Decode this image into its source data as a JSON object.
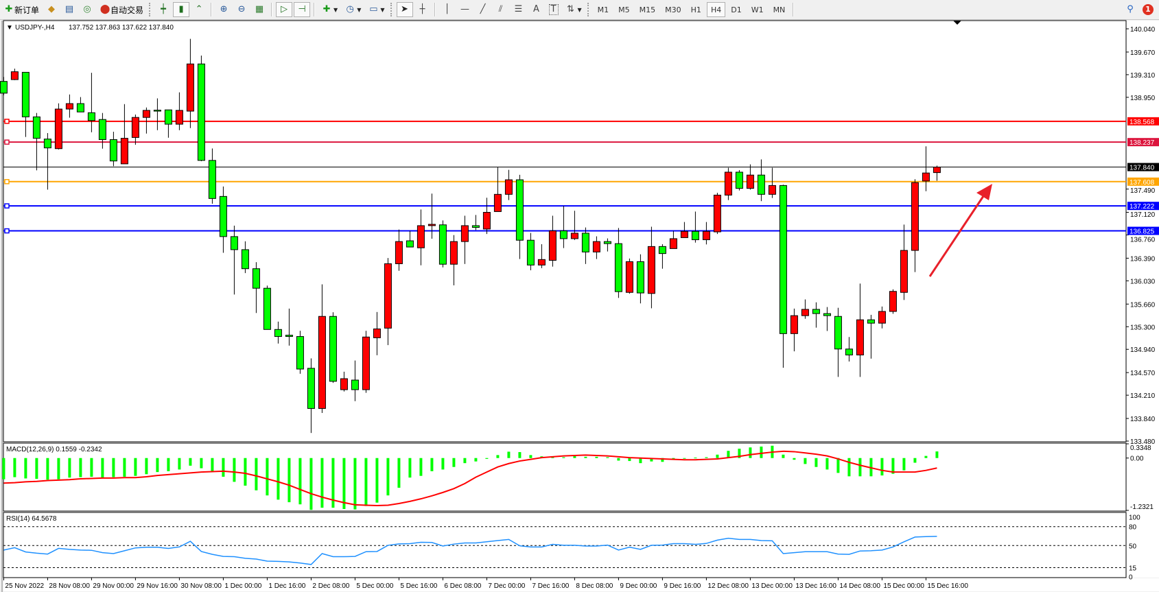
{
  "toolbar": {
    "new_order_label": "新订单",
    "auto_trading_label": "自动交易",
    "icons": [
      "new-order-icon",
      "market-watch-icon",
      "data-window-icon",
      "navigator-icon",
      "auto-trading-icon",
      "bar-chart-icon",
      "candlestick-icon",
      "line-chart-icon",
      "zoom-in-icon",
      "zoom-out-icon",
      "tile-windows-icon",
      "auto-scroll-icon",
      "chart-shift-icon",
      "indicators-icon",
      "periods-icon",
      "templates-icon",
      "cursor-icon",
      "crosshair-icon",
      "vertical-line-icon",
      "horizontal-line-icon",
      "trendline-icon",
      "equidistant-channel-icon",
      "fibonacci-icon",
      "text-icon",
      "text-label-icon",
      "arrows-icon",
      "search-icon",
      "notification-icon"
    ],
    "text_tool_label": "A",
    "timeframes": [
      "M1",
      "M5",
      "M15",
      "M30",
      "H1",
      "H4",
      "D1",
      "W1",
      "MN"
    ],
    "active_timeframe": "H4",
    "notification_count": "1"
  },
  "chart_header": {
    "symbol": "USDJPY-,H4",
    "ohlc": "137.752 137.863 137.622 137.840"
  },
  "colors": {
    "bull": "#ff0000",
    "bear": "#00ff00",
    "macd_hist": "#00ff00",
    "macd_signal": "#ff0000",
    "rsi": "#1e90ff"
  },
  "price_axis": {
    "ticks": [
      "140.040",
      "139.670",
      "139.310",
      "138.950",
      "137.490",
      "137.120",
      "136.760",
      "136.390",
      "136.030",
      "135.660",
      "135.300",
      "134.940",
      "134.570",
      "134.210",
      "133.840",
      "133.480"
    ],
    "range": [
      133.48,
      140.04
    ]
  },
  "levels": [
    {
      "price": "138.568",
      "color": "#ff0000"
    },
    {
      "price": "138.237",
      "color": "#dc143c"
    },
    {
      "price": "137.840",
      "color": "#000000"
    },
    {
      "price": "137.608",
      "color": "#ffa500"
    },
    {
      "price": "137.222",
      "color": "#0000ff"
    },
    {
      "price": "136.825",
      "color": "#0000ff"
    }
  ],
  "time_axis": [
    "25 Nov 2022",
    "28 Nov 08:00",
    "29 Nov 00:00",
    "29 Nov 16:00",
    "30 Nov 08:00",
    "1 Dec 00:00",
    "1 Dec 16:00",
    "2 Dec 08:00",
    "5 Dec 00:00",
    "5 Dec 16:00",
    "6 Dec 08:00",
    "7 Dec 00:00",
    "7 Dec 16:00",
    "8 Dec 08:00",
    "9 Dec 00:00",
    "9 Dec 16:00",
    "12 Dec 08:00",
    "13 Dec 00:00",
    "13 Dec 16:00",
    "14 Dec 08:00",
    "15 Dec 00:00",
    "15 Dec 16:00"
  ],
  "macd": {
    "label": "MACD(12,26,9) 0.1559 -0.2342",
    "axis": [
      "0.3348",
      "0.00",
      "-1.2321"
    ],
    "range": [
      -1.2321,
      0.3348
    ]
  },
  "rsi": {
    "label": "RSI(14) 64.5678",
    "axis": [
      "100",
      "80",
      "50",
      "15",
      "0"
    ],
    "levels": [
      80,
      50,
      15
    ]
  },
  "chart_data": {
    "type": "candlestick",
    "ohlc_order": [
      "open",
      "high",
      "low",
      "close"
    ],
    "candles": [
      [
        139.203,
        139.274,
        138.983,
        139.016
      ],
      [
        139.232,
        139.406,
        139.224,
        139.357
      ],
      [
        139.348,
        139.348,
        138.319,
        138.639
      ],
      [
        138.639,
        138.701,
        137.788,
        138.298
      ],
      [
        138.286,
        138.381,
        137.481,
        138.145
      ],
      [
        138.133,
        138.854,
        138.12,
        138.763
      ],
      [
        138.763,
        138.995,
        138.626,
        138.85
      ],
      [
        138.85,
        138.954,
        138.717,
        138.717
      ],
      [
        138.705,
        139.34,
        138.394,
        138.58
      ],
      [
        138.597,
        138.701,
        138.133,
        138.277
      ],
      [
        138.277,
        138.402,
        137.854,
        137.937
      ],
      [
        137.891,
        138.842,
        137.891,
        138.298
      ],
      [
        138.311,
        138.676,
        138.195,
        138.63
      ],
      [
        138.63,
        138.788,
        138.373,
        138.742
      ],
      [
        138.746,
        138.933,
        138.427,
        138.74
      ],
      [
        138.75,
        138.75,
        138.307,
        138.522
      ],
      [
        138.522,
        139.029,
        138.427,
        138.742
      ],
      [
        138.73,
        139.88,
        138.46,
        139.481
      ],
      [
        139.481,
        139.614,
        137.933,
        137.946
      ],
      [
        137.946,
        138.136,
        137.257,
        137.34
      ],
      [
        137.373,
        137.531,
        136.476,
        136.734
      ],
      [
        136.734,
        136.908,
        135.812,
        136.526
      ],
      [
        136.526,
        136.659,
        136.153,
        136.223
      ],
      [
        136.223,
        136.327,
        135.518,
        135.912
      ],
      [
        135.912,
        135.954,
        135.256,
        135.256
      ],
      [
        135.256,
        135.381,
        135.032,
        135.144
      ],
      [
        135.165,
        135.588,
        134.999,
        135.144
      ],
      [
        135.144,
        135.235,
        134.551,
        134.626
      ],
      [
        134.638,
        134.796,
        133.609,
        133.999
      ],
      [
        133.999,
        135.974,
        133.928,
        135.464
      ],
      [
        135.464,
        135.53,
        134.406,
        134.431
      ],
      [
        134.298,
        134.584,
        134.269,
        134.473
      ],
      [
        134.451,
        134.762,
        134.115,
        134.298
      ],
      [
        134.298,
        135.235,
        134.248,
        135.136
      ],
      [
        135.124,
        135.534,
        134.846,
        135.265
      ],
      [
        135.277,
        136.393,
        135.007,
        136.302
      ],
      [
        136.302,
        136.846,
        136.19,
        136.655
      ],
      [
        136.667,
        136.825,
        136.568,
        136.568
      ],
      [
        136.555,
        137.165,
        136.277,
        136.908
      ],
      [
        136.908,
        137.418,
        136.7,
        136.929
      ],
      [
        136.921,
        136.991,
        136.244,
        136.294
      ],
      [
        136.294,
        136.758,
        135.958,
        136.655
      ],
      [
        136.655,
        137.066,
        136.298,
        136.908
      ],
      [
        136.908,
        137.078,
        136.838,
        136.879
      ],
      [
        136.854,
        137.352,
        136.775,
        137.12
      ],
      [
        137.132,
        137.834,
        137.132,
        137.406
      ],
      [
        137.406,
        137.796,
        137.315,
        137.638
      ],
      [
        137.638,
        137.717,
        136.377,
        136.676
      ],
      [
        136.676,
        136.792,
        136.198,
        136.281
      ],
      [
        136.281,
        136.613,
        136.232,
        136.369
      ],
      [
        136.356,
        137.066,
        136.256,
        136.825
      ],
      [
        136.825,
        137.223,
        136.551,
        136.701
      ],
      [
        136.701,
        137.145,
        136.68,
        136.788
      ],
      [
        136.788,
        136.879,
        136.298,
        136.489
      ],
      [
        136.489,
        136.738,
        136.377,
        136.655
      ],
      [
        136.655,
        136.705,
        136.497,
        136.622
      ],
      [
        136.622,
        136.871,
        135.758,
        135.858
      ],
      [
        135.846,
        136.385,
        135.825,
        136.335
      ],
      [
        136.335,
        136.452,
        135.671,
        135.837
      ],
      [
        135.829,
        136.891,
        135.593,
        136.576
      ],
      [
        136.576,
        136.613,
        136.223,
        136.464
      ],
      [
        136.543,
        136.825,
        136.543,
        136.701
      ],
      [
        136.717,
        136.966,
        136.717,
        136.817
      ],
      [
        136.817,
        137.132,
        136.638,
        136.684
      ],
      [
        136.684,
        136.966,
        136.609,
        136.817
      ],
      [
        136.809,
        137.431,
        136.775,
        137.394
      ],
      [
        137.394,
        137.829,
        137.315,
        137.759
      ],
      [
        137.759,
        137.792,
        137.468,
        137.501
      ],
      [
        137.501,
        137.883,
        137.481,
        137.713
      ],
      [
        137.713,
        137.962,
        137.298,
        137.406
      ],
      [
        137.406,
        137.829,
        137.348,
        137.547
      ],
      [
        137.547,
        137.56,
        134.646,
        135.19
      ],
      [
        135.19,
        135.588,
        134.908,
        135.476
      ],
      [
        135.476,
        135.734,
        135.426,
        135.576
      ],
      [
        135.576,
        135.688,
        135.285,
        135.509
      ],
      [
        135.509,
        135.613,
        135.232,
        135.476
      ],
      [
        135.464,
        135.601,
        134.501,
        134.945
      ],
      [
        134.945,
        135.136,
        134.746,
        134.85
      ],
      [
        134.85,
        135.987,
        134.501,
        135.41
      ],
      [
        135.41,
        135.489,
        134.792,
        135.356
      ],
      [
        135.356,
        135.621,
        135.273,
        135.543
      ],
      [
        135.543,
        135.895,
        135.505,
        135.862
      ],
      [
        135.846,
        136.925,
        135.725,
        136.514
      ],
      [
        136.514,
        137.647,
        136.169,
        137.593
      ],
      [
        137.618,
        138.17,
        137.456,
        137.746
      ],
      [
        137.752,
        137.863,
        137.622,
        137.84
      ]
    ],
    "macd_main": [
      -0.5,
      -0.45,
      -0.48,
      -0.49,
      -0.51,
      -0.5,
      -0.46,
      -0.45,
      -0.44,
      -0.46,
      -0.45,
      -0.44,
      -0.42,
      -0.38,
      -0.33,
      -0.31,
      -0.27,
      -0.18,
      -0.24,
      -0.31,
      -0.44,
      -0.56,
      -0.65,
      -0.76,
      -0.88,
      -0.98,
      -1.04,
      -1.09,
      -1.22,
      -1.17,
      -1.17,
      -1.2,
      -1.21,
      -1.13,
      -1.05,
      -0.88,
      -0.7,
      -0.46,
      -0.42,
      -0.31,
      -0.27,
      -0.21,
      -0.12,
      -0.08,
      -0.02,
      0.07,
      0.15,
      0.14,
      0.07,
      0.04,
      0.02,
      0.02,
      0.05,
      0.03,
      0.03,
      0.02,
      -0.06,
      -0.07,
      -0.12,
      -0.08,
      -0.09,
      -0.02,
      -0.01,
      0.01,
      0.02,
      0.08,
      0.17,
      0.22,
      0.25,
      0.27,
      0.29,
      0.08,
      -0.04,
      -0.14,
      -0.21,
      -0.27,
      -0.35,
      -0.43,
      -0.43,
      -0.43,
      -0.41,
      -0.37,
      -0.29,
      -0.11,
      0.05,
      0.1559
    ],
    "macd_signal": [
      -0.59,
      -0.58,
      -0.56,
      -0.55,
      -0.53,
      -0.52,
      -0.51,
      -0.49,
      -0.48,
      -0.47,
      -0.47,
      -0.46,
      -0.46,
      -0.44,
      -0.41,
      -0.39,
      -0.37,
      -0.35,
      -0.33,
      -0.32,
      -0.31,
      -0.33,
      -0.36,
      -0.42,
      -0.49,
      -0.56,
      -0.64,
      -0.74,
      -0.84,
      -0.92,
      -0.99,
      -1.05,
      -1.1,
      -1.11,
      -1.12,
      -1.11,
      -1.07,
      -1.02,
      -0.96,
      -0.89,
      -0.81,
      -0.72,
      -0.6,
      -0.45,
      -0.33,
      -0.21,
      -0.13,
      -0.07,
      -0.03,
      0.01,
      0.03,
      0.05,
      0.06,
      0.07,
      0.06,
      0.05,
      0.03,
      0.01,
      0.0,
      -0.01,
      -0.02,
      -0.03,
      -0.04,
      -0.04,
      -0.03,
      -0.02,
      0.01,
      0.04,
      0.08,
      0.11,
      0.14,
      0.16,
      0.15,
      0.12,
      0.09,
      0.05,
      -0.02,
      -0.1,
      -0.17,
      -0.23,
      -0.29,
      -0.33,
      -0.33,
      -0.33,
      -0.29,
      -0.2342
    ],
    "rsi": [
      42.9,
      46.6,
      39.9,
      38,
      36.5,
      45.5,
      44,
      42.9,
      42.5,
      38.8,
      37.3,
      41.8,
      46.3,
      47.4,
      47.4,
      45.5,
      47.8,
      56.8,
      40.6,
      36.1,
      32.8,
      32.4,
      29.8,
      28.6,
      25.3,
      24.9,
      24.1,
      22.3,
      20,
      37.3,
      32.4,
      32.4,
      32.8,
      40.3,
      40.6,
      50.4,
      52.6,
      53,
      55.2,
      54.9,
      49.3,
      52.3,
      54.1,
      54.1,
      56,
      57.9,
      59.7,
      49.6,
      47.8,
      47.8,
      51.9,
      50.4,
      50.4,
      49.3,
      49.3,
      50.7,
      42.9,
      47.4,
      44,
      50.4,
      50.7,
      53,
      53,
      51.9,
      53.4,
      58.6,
      61.6,
      59.7,
      59.7,
      57.9,
      57.5,
      37.3,
      38.8,
      40.3,
      40.3,
      40.3,
      36.5,
      36.1,
      41.4,
      41.8,
      42.9,
      47.8,
      56,
      63.5,
      64.2,
      64.5678
    ]
  }
}
